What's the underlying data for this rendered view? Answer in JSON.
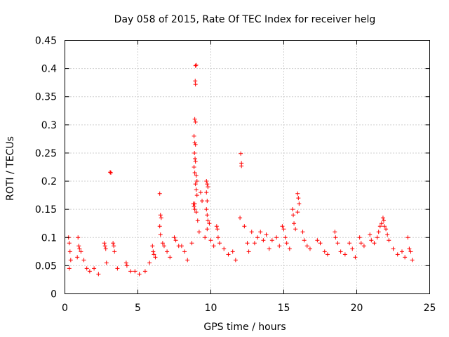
{
  "chart_data": {
    "type": "scatter",
    "title": "Day 058 of 2015, Rate Of TEC Index for receiver helg",
    "xlabel": "GPS time / hours",
    "ylabel": "ROTI / TECUs",
    "xlim": [
      0,
      25
    ],
    "ylim": [
      0,
      0.45
    ],
    "x_ticks": [
      0,
      5,
      10,
      15,
      20,
      25
    ],
    "y_ticks": [
      0,
      0.05,
      0.1,
      0.15,
      0.2,
      0.25,
      0.3,
      0.35,
      0.4,
      0.45
    ],
    "x_tick_labels": [
      "0",
      "5",
      "10",
      "15",
      "20",
      "25"
    ],
    "y_tick_labels": [
      "0",
      "0.05",
      "0.1",
      "0.15",
      "0.2",
      "0.25",
      "0.3",
      "0.35",
      "0.4",
      "0.45"
    ],
    "grid": true,
    "marker": "+",
    "color": "#ff0000",
    "series": [
      {
        "name": "ROTI",
        "points": [
          [
            0.25,
            0.1
          ],
          [
            0.3,
            0.09
          ],
          [
            0.35,
            0.075
          ],
          [
            0.4,
            0.06
          ],
          [
            0.3,
            0.045
          ],
          [
            0.9,
            0.1
          ],
          [
            0.95,
            0.085
          ],
          [
            1.0,
            0.08
          ],
          [
            1.1,
            0.075
          ],
          [
            0.85,
            0.065
          ],
          [
            1.3,
            0.06
          ],
          [
            1.5,
            0.045
          ],
          [
            1.7,
            0.04
          ],
          [
            2.0,
            0.045
          ],
          [
            2.3,
            0.035
          ],
          [
            2.7,
            0.09
          ],
          [
            2.75,
            0.085
          ],
          [
            2.8,
            0.08
          ],
          [
            2.85,
            0.055
          ],
          [
            3.1,
            0.216
          ],
          [
            3.15,
            0.215
          ],
          [
            3.3,
            0.09
          ],
          [
            3.35,
            0.085
          ],
          [
            3.4,
            0.075
          ],
          [
            3.6,
            0.045
          ],
          [
            4.2,
            0.055
          ],
          [
            4.25,
            0.05
          ],
          [
            4.5,
            0.04
          ],
          [
            4.8,
            0.04
          ],
          [
            5.1,
            0.035
          ],
          [
            5.5,
            0.04
          ],
          [
            5.8,
            0.055
          ],
          [
            6.0,
            0.085
          ],
          [
            6.05,
            0.075
          ],
          [
            6.1,
            0.07
          ],
          [
            6.2,
            0.065
          ],
          [
            6.5,
            0.178
          ],
          [
            6.55,
            0.14
          ],
          [
            6.6,
            0.135
          ],
          [
            6.5,
            0.12
          ],
          [
            6.55,
            0.105
          ],
          [
            6.7,
            0.09
          ],
          [
            6.8,
            0.085
          ],
          [
            7.0,
            0.075
          ],
          [
            7.2,
            0.065
          ],
          [
            7.5,
            0.1
          ],
          [
            7.6,
            0.095
          ],
          [
            7.8,
            0.085
          ],
          [
            8.0,
            0.085
          ],
          [
            8.2,
            0.075
          ],
          [
            8.4,
            0.06
          ],
          [
            8.7,
            0.09
          ],
          [
            8.8,
            0.16
          ],
          [
            8.85,
            0.155
          ],
          [
            8.9,
            0.15
          ],
          [
            8.95,
            0.405
          ],
          [
            9.0,
            0.406
          ],
          [
            8.93,
            0.378
          ],
          [
            8.95,
            0.372
          ],
          [
            8.9,
            0.31
          ],
          [
            8.95,
            0.305
          ],
          [
            8.85,
            0.28
          ],
          [
            8.9,
            0.268
          ],
          [
            8.95,
            0.265
          ],
          [
            8.88,
            0.25
          ],
          [
            8.92,
            0.24
          ],
          [
            8.95,
            0.235
          ],
          [
            8.85,
            0.225
          ],
          [
            8.9,
            0.215
          ],
          [
            9.0,
            0.21
          ],
          [
            9.05,
            0.2
          ],
          [
            8.95,
            0.195
          ],
          [
            9.0,
            0.185
          ],
          [
            9.05,
            0.175
          ],
          [
            8.9,
            0.16
          ],
          [
            9.0,
            0.145
          ],
          [
            9.1,
            0.13
          ],
          [
            9.2,
            0.11
          ],
          [
            9.3,
            0.18
          ],
          [
            9.4,
            0.165
          ],
          [
            9.7,
            0.2
          ],
          [
            9.75,
            0.195
          ],
          [
            9.8,
            0.19
          ],
          [
            9.7,
            0.18
          ],
          [
            9.75,
            0.165
          ],
          [
            9.7,
            0.15
          ],
          [
            9.75,
            0.14
          ],
          [
            9.8,
            0.13
          ],
          [
            9.9,
            0.125
          ],
          [
            9.75,
            0.115
          ],
          [
            9.6,
            0.1
          ],
          [
            10.0,
            0.095
          ],
          [
            10.2,
            0.085
          ],
          [
            10.4,
            0.12
          ],
          [
            10.45,
            0.115
          ],
          [
            10.5,
            0.1
          ],
          [
            10.6,
            0.09
          ],
          [
            10.9,
            0.08
          ],
          [
            11.2,
            0.07
          ],
          [
            11.5,
            0.075
          ],
          [
            11.7,
            0.06
          ],
          [
            12.05,
            0.249
          ],
          [
            12.1,
            0.232
          ],
          [
            12.1,
            0.227
          ],
          [
            12.0,
            0.135
          ],
          [
            12.3,
            0.12
          ],
          [
            12.5,
            0.09
          ],
          [
            12.6,
            0.075
          ],
          [
            12.8,
            0.11
          ],
          [
            13.0,
            0.09
          ],
          [
            13.2,
            0.1
          ],
          [
            13.4,
            0.11
          ],
          [
            13.6,
            0.095
          ],
          [
            13.8,
            0.105
          ],
          [
            14.0,
            0.08
          ],
          [
            14.2,
            0.095
          ],
          [
            14.5,
            0.1
          ],
          [
            14.7,
            0.085
          ],
          [
            14.9,
            0.12
          ],
          [
            15.0,
            0.115
          ],
          [
            15.1,
            0.1
          ],
          [
            15.2,
            0.09
          ],
          [
            15.4,
            0.08
          ],
          [
            15.6,
            0.15
          ],
          [
            15.65,
            0.14
          ],
          [
            15.7,
            0.125
          ],
          [
            15.8,
            0.115
          ],
          [
            15.95,
            0.178
          ],
          [
            16.0,
            0.17
          ],
          [
            16.05,
            0.16
          ],
          [
            15.95,
            0.145
          ],
          [
            16.3,
            0.11
          ],
          [
            16.4,
            0.095
          ],
          [
            16.6,
            0.085
          ],
          [
            16.8,
            0.08
          ],
          [
            17.3,
            0.095
          ],
          [
            17.5,
            0.09
          ],
          [
            17.8,
            0.075
          ],
          [
            18.0,
            0.07
          ],
          [
            18.5,
            0.11
          ],
          [
            18.55,
            0.1
          ],
          [
            18.7,
            0.09
          ],
          [
            18.9,
            0.075
          ],
          [
            19.2,
            0.07
          ],
          [
            19.5,
            0.09
          ],
          [
            19.7,
            0.08
          ],
          [
            19.9,
            0.065
          ],
          [
            20.2,
            0.1
          ],
          [
            20.3,
            0.09
          ],
          [
            20.5,
            0.085
          ],
          [
            20.9,
            0.105
          ],
          [
            21.0,
            0.095
          ],
          [
            21.2,
            0.09
          ],
          [
            21.4,
            0.1
          ],
          [
            21.5,
            0.11
          ],
          [
            21.6,
            0.12
          ],
          [
            21.7,
            0.125
          ],
          [
            21.8,
            0.135
          ],
          [
            21.85,
            0.13
          ],
          [
            21.9,
            0.12
          ],
          [
            22.0,
            0.115
          ],
          [
            22.1,
            0.105
          ],
          [
            22.2,
            0.095
          ],
          [
            22.5,
            0.08
          ],
          [
            22.8,
            0.07
          ],
          [
            23.1,
            0.075
          ],
          [
            23.3,
            0.065
          ],
          [
            23.5,
            0.1
          ],
          [
            23.6,
            0.08
          ],
          [
            23.7,
            0.075
          ],
          [
            23.8,
            0.06
          ]
        ]
      }
    ]
  }
}
